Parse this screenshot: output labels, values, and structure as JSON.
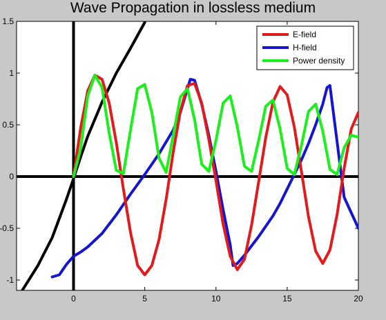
{
  "chart_data": {
    "type": "line",
    "title": "Wave Propagation in lossless medium",
    "xlim": [
      -4,
      20
    ],
    "ylim": [
      -1.1,
      1.5
    ],
    "xticks": [
      0,
      5,
      10,
      15,
      20
    ],
    "yticks": [
      -1,
      -0.5,
      0,
      0.5,
      1,
      1.5
    ],
    "xtick_labels": [
      "0",
      "5",
      "10",
      "15",
      "20"
    ],
    "ytick_labels": [
      "-1",
      "-0.5",
      "0",
      "0.5",
      "1",
      "1.5"
    ],
    "grid": false,
    "legend_position": "top-right",
    "series": [
      {
        "name": "E-field",
        "color": "#e31a1c",
        "x": [
          0.0,
          0.5,
          1.0,
          1.5,
          2.0,
          2.5,
          3.0,
          3.5,
          4.0,
          4.5,
          5.0,
          5.5,
          6.0,
          6.5,
          7.0,
          7.5,
          8.0,
          8.5,
          9.0,
          9.5,
          10.0,
          10.5,
          11.0,
          11.5,
          12.0,
          12.5,
          13.0,
          13.5,
          14.0,
          14.5,
          15.0,
          15.5,
          16.0,
          16.5,
          17.0,
          17.5,
          18.0,
          18.5,
          19.0,
          19.5,
          20.0
        ],
        "y": [
          0.0,
          0.47,
          0.83,
          0.98,
          0.94,
          0.71,
          0.33,
          -0.12,
          -0.54,
          -0.86,
          -0.95,
          -0.86,
          -0.61,
          -0.22,
          0.24,
          0.63,
          0.88,
          0.9,
          0.71,
          0.36,
          -0.04,
          -0.46,
          -0.77,
          -0.9,
          -0.8,
          -0.47,
          -0.05,
          0.38,
          0.72,
          0.87,
          0.79,
          0.48,
          0.05,
          -0.39,
          -0.72,
          -0.84,
          -0.71,
          -0.37,
          0.08,
          0.46,
          0.62
        ]
      },
      {
        "name": "H-field",
        "color": "#1414d2",
        "x": [
          -1.5,
          -1.0,
          -0.5,
          0.0,
          0.5,
          1.0,
          2.0,
          3.0,
          4.0,
          5.0,
          6.0,
          7.0,
          7.5,
          8.0,
          8.2,
          8.5,
          9.0,
          9.5,
          10.0,
          10.5,
          11.0,
          11.2,
          11.5,
          12.0,
          13.0,
          14.0,
          14.5,
          15.0,
          15.5,
          16.0,
          16.5,
          17.0,
          17.5,
          17.8,
          18.0,
          19.0,
          20.0
        ],
        "y": [
          -0.97,
          -0.95,
          -0.85,
          -0.77,
          -0.73,
          -0.68,
          -0.55,
          -0.37,
          -0.17,
          0.02,
          0.22,
          0.45,
          0.62,
          0.85,
          0.94,
          0.93,
          0.7,
          0.4,
          0.05,
          -0.32,
          -0.66,
          -0.86,
          -0.84,
          -0.76,
          -0.58,
          -0.38,
          -0.26,
          -0.12,
          0.02,
          0.16,
          0.32,
          0.5,
          0.7,
          0.86,
          0.88,
          -0.2,
          -0.5
        ]
      },
      {
        "name": "Power density",
        "color": "#1cf01c",
        "x": [
          0.0,
          0.5,
          1.0,
          1.5,
          2.0,
          2.5,
          3.0,
          3.5,
          4.0,
          4.5,
          5.0,
          5.5,
          6.0,
          6.5,
          7.0,
          7.5,
          8.0,
          8.5,
          9.0,
          9.5,
          10.0,
          10.5,
          11.0,
          11.5,
          12.0,
          12.5,
          13.0,
          13.5,
          14.0,
          14.5,
          15.0,
          15.5,
          16.0,
          16.5,
          17.0,
          17.5,
          18.0,
          18.5,
          19.0,
          19.5,
          20.0
        ],
        "y": [
          0.0,
          0.27,
          0.78,
          0.98,
          0.86,
          0.42,
          0.06,
          0.03,
          0.45,
          0.85,
          0.89,
          0.62,
          0.18,
          0.04,
          0.4,
          0.77,
          0.85,
          0.55,
          0.12,
          0.05,
          0.35,
          0.71,
          0.78,
          0.48,
          0.1,
          0.05,
          0.35,
          0.68,
          0.74,
          0.46,
          0.08,
          0.02,
          0.3,
          0.63,
          0.7,
          0.44,
          0.07,
          0.02,
          0.28,
          0.4,
          0.38
        ]
      },
      {
        "name": "",
        "color": "#000000",
        "x": [
          -3.6,
          -2.5,
          -1.5,
          -0.5,
          0.0,
          0.5,
          1.0,
          2.0,
          3.0,
          4.0,
          5.0
        ],
        "y": [
          -1.1,
          -0.86,
          -0.59,
          -0.22,
          -0.02,
          0.19,
          0.39,
          0.72,
          1.0,
          1.24,
          1.49
        ]
      }
    ]
  }
}
